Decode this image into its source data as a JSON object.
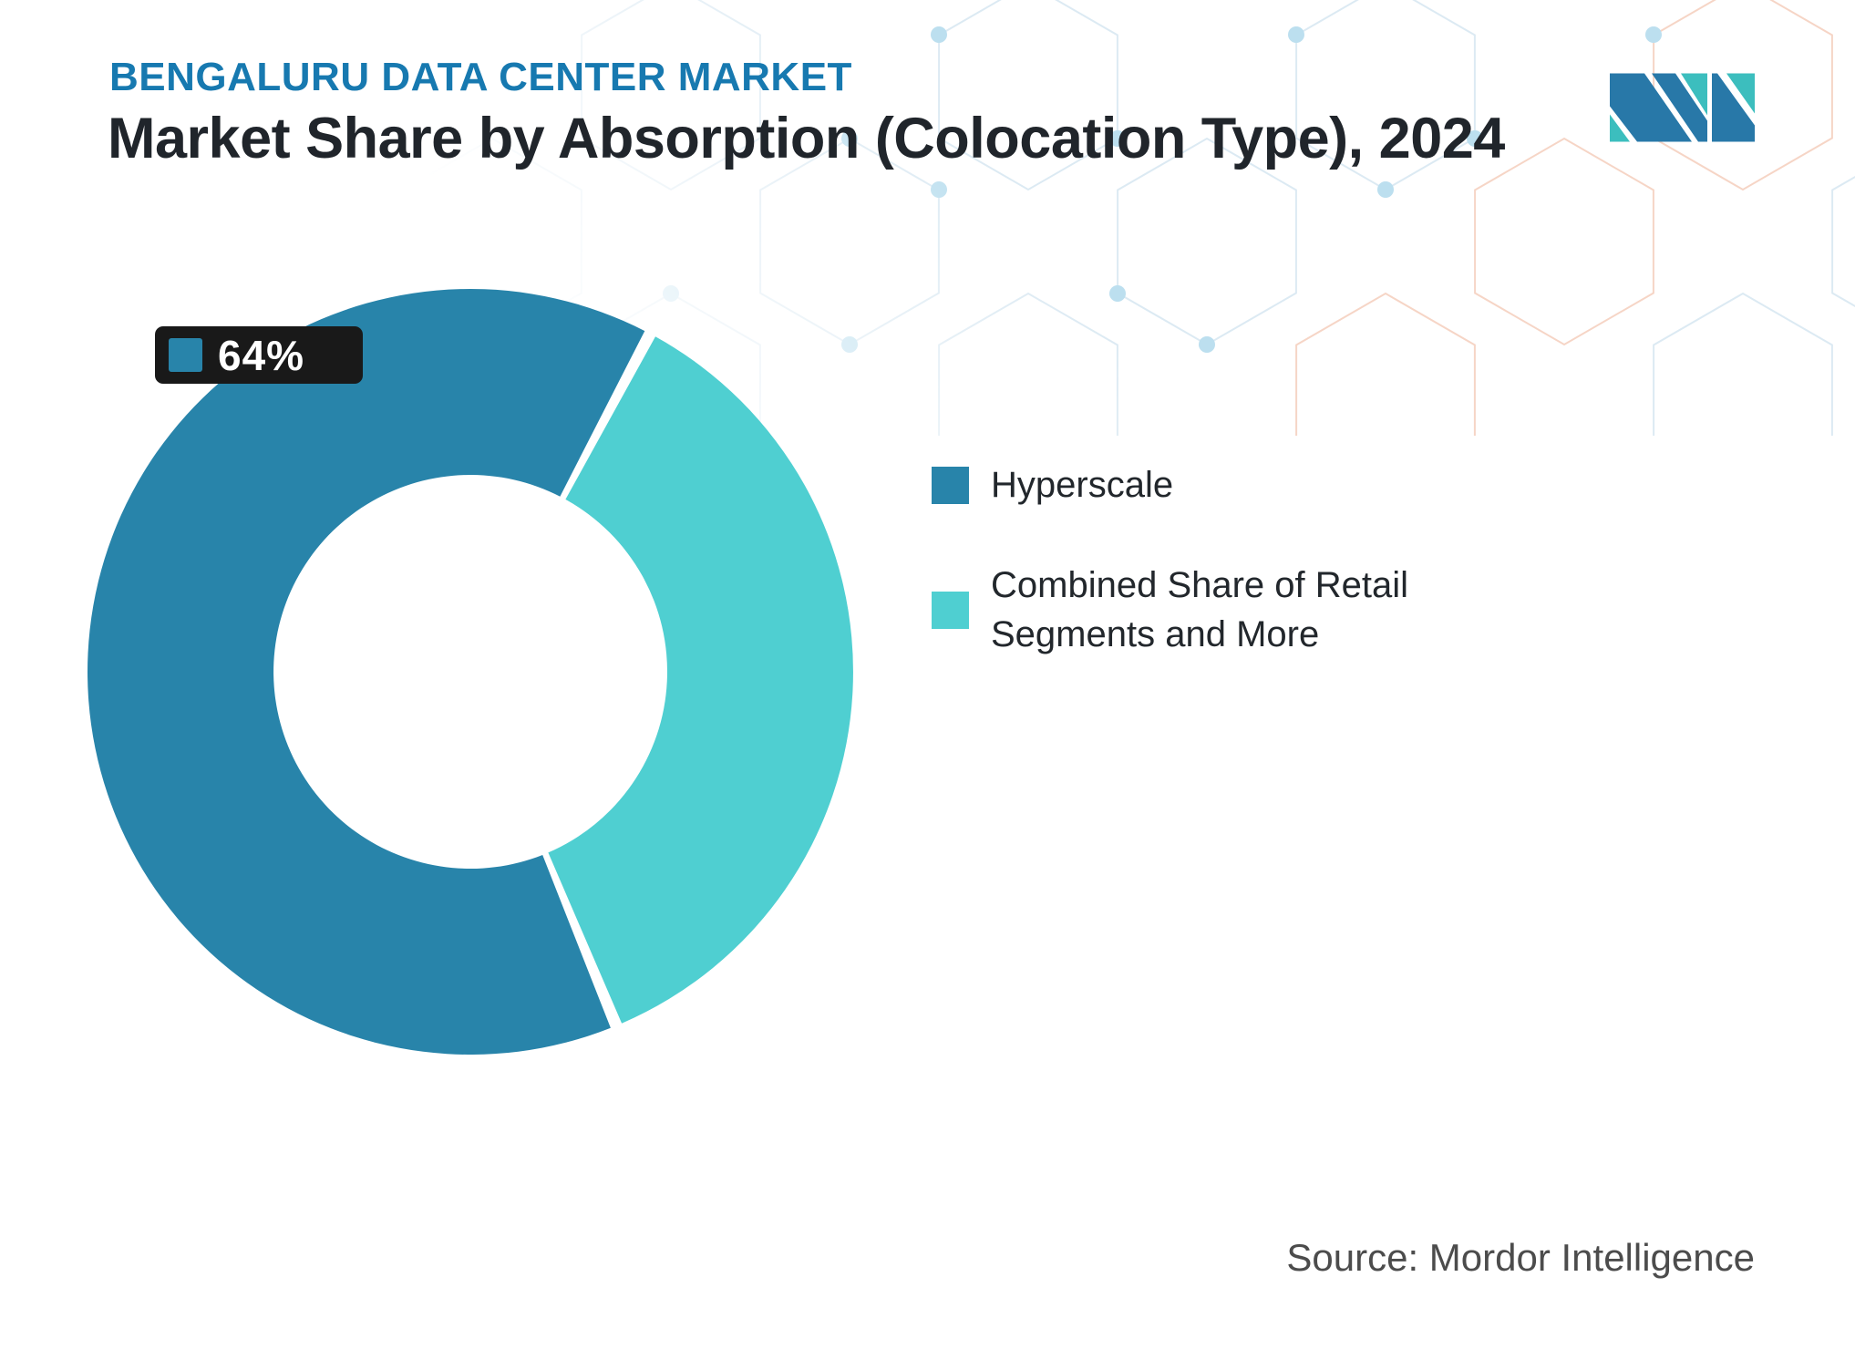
{
  "header": {
    "eyebrow": "BENGALURU DATA CENTER MARKET",
    "title": "Market Share by Absorption (Colocation Type), 2024"
  },
  "callout": {
    "label": "64%"
  },
  "legend": {
    "items": [
      {
        "label": "Hyperscale",
        "color": "#2884AA"
      },
      {
        "label": "Combined Share of Retail Segments and More",
        "color": "#4FCFD1"
      }
    ]
  },
  "footer": {
    "source": "Source: Mordor Intelligence"
  },
  "icons": {
    "logo": "mordor-intelligence-m-logo"
  },
  "chart_data": {
    "type": "pie",
    "donut": true,
    "title": "Market Share by Absorption (Colocation Type), 2024",
    "categories": [
      "Hyperscale",
      "Combined Share of Retail Segments and More"
    ],
    "values": [
      64,
      36
    ],
    "unit": "%",
    "colors": [
      "#2884AA",
      "#4FCFD1"
    ],
    "data_labels": [
      {
        "series": "Hyperscale",
        "text": "64%"
      }
    ],
    "rotation_deg": 157.6,
    "outer_radius": 420,
    "inner_radius": 216,
    "legend_position": "right",
    "grid": false
  },
  "theme": {
    "brand_blue": "#1779B0",
    "heading": "#20252B",
    "callout_bg": "#191919",
    "source_gray": "#4C4C4C",
    "pattern_blue": "#DCEAF3",
    "pattern_orange": "#F6D5C6",
    "pattern_dot": "#BCDFEF",
    "logo_blue": "#2878A8",
    "logo_teal": "#3CBEBE"
  }
}
